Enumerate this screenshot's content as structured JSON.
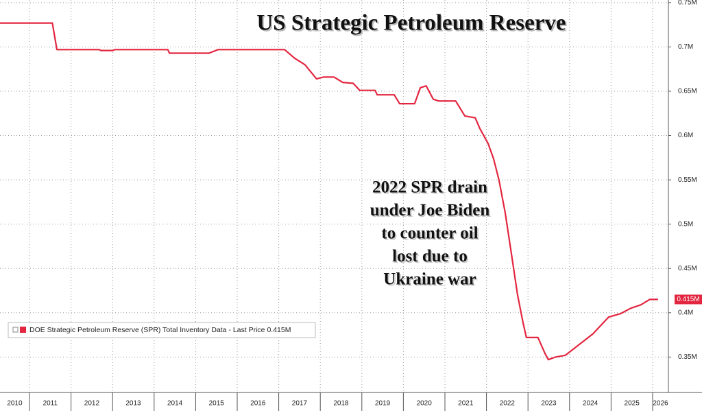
{
  "chart_data": {
    "type": "line",
    "title": "US Strategic Petroleum Reserve",
    "annotation": [
      "2022 SPR drain",
      "under Joe Biden",
      "to counter oil",
      "lost due to",
      "Ukraine war"
    ],
    "x": [
      2010.29,
      2011.55,
      2011.66,
      2012.68,
      2012.72,
      2013.01,
      2013.05,
      2014.33,
      2014.37,
      2015.32,
      2015.54,
      2017.14,
      2017.39,
      2017.63,
      2017.91,
      2018.08,
      2018.33,
      2018.54,
      2018.79,
      2018.95,
      2019.32,
      2019.37,
      2019.78,
      2019.91,
      2020.27,
      2020.41,
      2020.55,
      2020.72,
      2020.85,
      2021.26,
      2021.48,
      2021.73,
      2021.84,
      2022.04,
      2022.17,
      2022.3,
      2022.45,
      2022.6,
      2022.75,
      2022.88,
      2022.96,
      2023.24,
      2023.41,
      2023.49,
      2023.66,
      2023.9,
      2024.23,
      2024.56,
      2024.94,
      2025.23,
      2025.47,
      2025.72,
      2025.93,
      2026.13
    ],
    "series": [
      {
        "name": "DOE Strategic Petroleum Reserve (SPR) Total Inventory Data - Last Price 0.415M",
        "color": "#e3263f",
        "values": [
          0.727,
          0.727,
          0.697,
          0.697,
          0.696,
          0.696,
          0.697,
          0.697,
          0.693,
          0.693,
          0.697,
          0.697,
          0.687,
          0.68,
          0.664,
          0.666,
          0.666,
          0.66,
          0.659,
          0.651,
          0.651,
          0.646,
          0.646,
          0.636,
          0.636,
          0.654,
          0.656,
          0.641,
          0.639,
          0.639,
          0.622,
          0.62,
          0.608,
          0.591,
          0.574,
          0.55,
          0.513,
          0.467,
          0.42,
          0.389,
          0.372,
          0.372,
          0.354,
          0.347,
          0.35,
          0.352,
          0.364,
          0.376,
          0.395,
          0.399,
          0.405,
          0.409,
          0.415,
          0.415
        ]
      }
    ],
    "last_price": {
      "value": 0.415,
      "label": "0.415M"
    },
    "xlim": [
      2010.29,
      2026.38
    ],
    "xticks": [
      2010,
      2011,
      2012,
      2013,
      2014,
      2015,
      2016,
      2017,
      2018,
      2019,
      2020,
      2021,
      2022,
      2023,
      2024,
      2025,
      2026
    ],
    "ylim": [
      0.31,
      0.753
    ],
    "yticks": [
      {
        "value": 0.35,
        "label": "0.35M"
      },
      {
        "value": 0.4,
        "label": "0.4M"
      },
      {
        "value": 0.45,
        "label": "0.45M"
      },
      {
        "value": 0.5,
        "label": "0.5M"
      },
      {
        "value": 0.55,
        "label": "0.55M"
      },
      {
        "value": 0.6,
        "label": "0.6M"
      },
      {
        "value": 0.65,
        "label": "0.65M"
      },
      {
        "value": 0.7,
        "label": "0.7M"
      },
      {
        "value": 0.75,
        "label": "0.75M"
      }
    ],
    "grid": true
  }
}
